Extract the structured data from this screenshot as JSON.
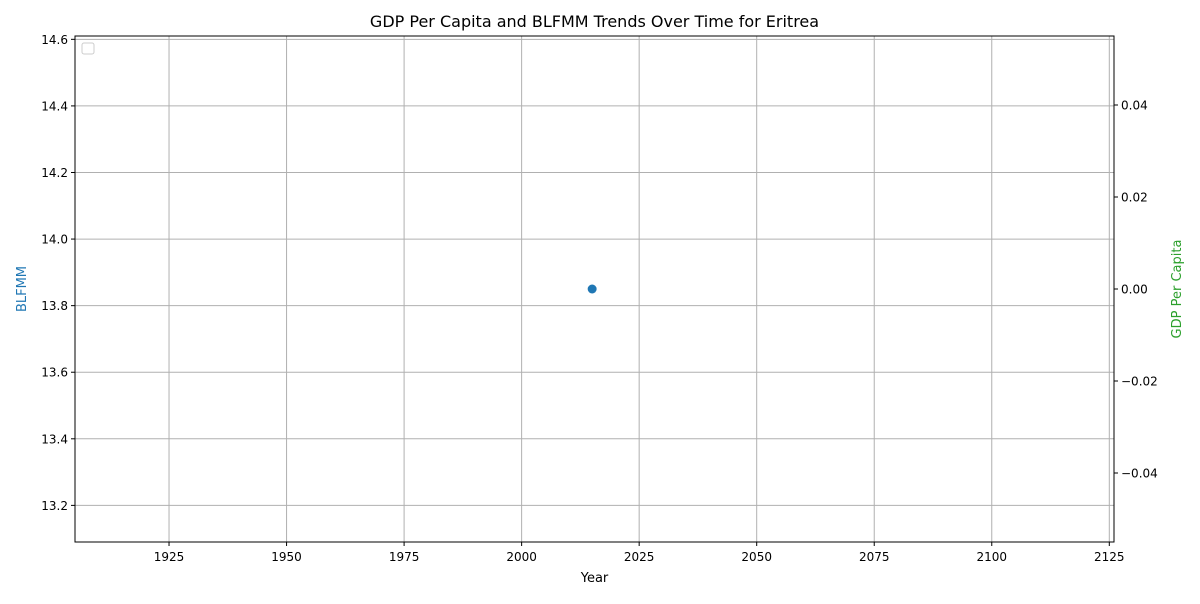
{
  "chart_data": {
    "type": "line",
    "title": "GDP Per Capita and BLFMM Trends Over Time for Eritrea",
    "xlabel": "Year",
    "ylabel_left": "BLFMM",
    "ylabel_right": "GDP Per Capita",
    "xlim": [
      1905,
      2126
    ],
    "x_ticks": [
      1925,
      1950,
      1975,
      2000,
      2025,
      2050,
      2075,
      2100,
      2125
    ],
    "ylim_left": [
      13.09,
      14.61
    ],
    "y_ticks_left": [
      "13.2",
      "13.4",
      "13.6",
      "13.8",
      "14.0",
      "14.2",
      "14.4",
      "14.6"
    ],
    "ylim_right": [
      -0.055,
      0.055
    ],
    "y_ticks_right": [
      "0.04",
      "0.02",
      "0.00",
      "−0.02",
      "−0.04"
    ],
    "y_tick_values_right": [
      0.04,
      0.02,
      0.0,
      -0.02,
      -0.04
    ],
    "grid": true,
    "legend_placement": "top-left",
    "series": [
      {
        "axis": "left",
        "color": "#1f77b4",
        "points": [
          {
            "x": 2015,
            "y": 13.85
          }
        ]
      }
    ],
    "colors": {
      "left_axis_label": "#1f77b4",
      "right_axis_label": "#2ca02c"
    }
  }
}
